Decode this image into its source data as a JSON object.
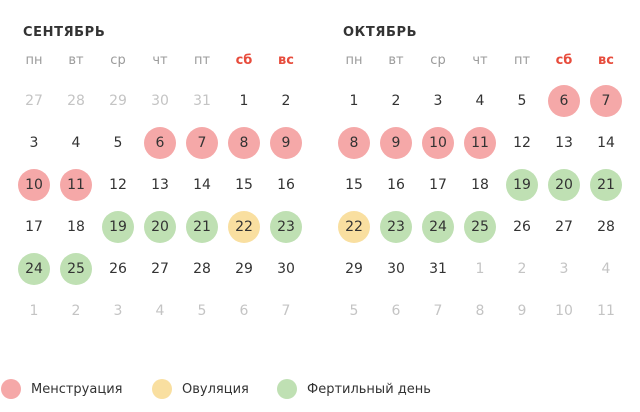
{
  "colors": {
    "menstruation": "#f5a8a8",
    "ovulation": "#f9dfa0",
    "fertile": "#bfe0b3",
    "weekend_header": "#e74c3c",
    "other_month_day": "#c4c4c4"
  },
  "weekdays": [
    "пн",
    "вт",
    "ср",
    "чт",
    "пт",
    "сб",
    "вс"
  ],
  "months": [
    {
      "title": "СЕНТЯБРЬ",
      "weeks": [
        [
          {
            "n": "27",
            "other": true
          },
          {
            "n": "28",
            "other": true
          },
          {
            "n": "29",
            "other": true
          },
          {
            "n": "30",
            "other": true
          },
          {
            "n": "31",
            "other": true
          },
          {
            "n": "1"
          },
          {
            "n": "2"
          }
        ],
        [
          {
            "n": "3"
          },
          {
            "n": "4"
          },
          {
            "n": "5"
          },
          {
            "n": "6",
            "mark": "mens"
          },
          {
            "n": "7",
            "mark": "mens"
          },
          {
            "n": "8",
            "mark": "mens"
          },
          {
            "n": "9",
            "mark": "mens"
          }
        ],
        [
          {
            "n": "10",
            "mark": "mens"
          },
          {
            "n": "11",
            "mark": "mens"
          },
          {
            "n": "12"
          },
          {
            "n": "13"
          },
          {
            "n": "14"
          },
          {
            "n": "15"
          },
          {
            "n": "16"
          }
        ],
        [
          {
            "n": "17"
          },
          {
            "n": "18"
          },
          {
            "n": "19",
            "mark": "fert"
          },
          {
            "n": "20",
            "mark": "fert"
          },
          {
            "n": "21",
            "mark": "fert"
          },
          {
            "n": "22",
            "mark": "ovul"
          },
          {
            "n": "23",
            "mark": "fert"
          }
        ],
        [
          {
            "n": "24",
            "mark": "fert"
          },
          {
            "n": "25",
            "mark": "fert"
          },
          {
            "n": "26"
          },
          {
            "n": "27"
          },
          {
            "n": "28"
          },
          {
            "n": "29"
          },
          {
            "n": "30"
          }
        ],
        [
          {
            "n": "1",
            "other": true
          },
          {
            "n": "2",
            "other": true
          },
          {
            "n": "3",
            "other": true
          },
          {
            "n": "4",
            "other": true
          },
          {
            "n": "5",
            "other": true
          },
          {
            "n": "6",
            "other": true
          },
          {
            "n": "7",
            "other": true
          }
        ]
      ]
    },
    {
      "title": "ОКТЯБРЬ",
      "weeks": [
        [
          {
            "n": "1"
          },
          {
            "n": "2"
          },
          {
            "n": "3"
          },
          {
            "n": "4"
          },
          {
            "n": "5"
          },
          {
            "n": "6",
            "mark": "mens"
          },
          {
            "n": "7",
            "mark": "mens"
          }
        ],
        [
          {
            "n": "8",
            "mark": "mens"
          },
          {
            "n": "9",
            "mark": "mens"
          },
          {
            "n": "10",
            "mark": "mens"
          },
          {
            "n": "11",
            "mark": "mens"
          },
          {
            "n": "12"
          },
          {
            "n": "13"
          },
          {
            "n": "14"
          }
        ],
        [
          {
            "n": "15"
          },
          {
            "n": "16"
          },
          {
            "n": "17"
          },
          {
            "n": "18"
          },
          {
            "n": "19",
            "mark": "fert"
          },
          {
            "n": "20",
            "mark": "fert"
          },
          {
            "n": "21",
            "mark": "fert"
          }
        ],
        [
          {
            "n": "22",
            "mark": "ovul"
          },
          {
            "n": "23",
            "mark": "fert"
          },
          {
            "n": "24",
            "mark": "fert"
          },
          {
            "n": "25",
            "mark": "fert"
          },
          {
            "n": "26"
          },
          {
            "n": "27"
          },
          {
            "n": "28"
          }
        ],
        [
          {
            "n": "29"
          },
          {
            "n": "30"
          },
          {
            "n": "31"
          },
          {
            "n": "1",
            "other": true
          },
          {
            "n": "2",
            "other": true
          },
          {
            "n": "3",
            "other": true
          },
          {
            "n": "4",
            "other": true
          }
        ],
        [
          {
            "n": "5",
            "other": true
          },
          {
            "n": "6",
            "other": true
          },
          {
            "n": "7",
            "other": true
          },
          {
            "n": "8",
            "other": true
          },
          {
            "n": "9",
            "other": true
          },
          {
            "n": "10",
            "other": true
          },
          {
            "n": "11",
            "other": true
          }
        ]
      ]
    }
  ],
  "legend": {
    "menstruation": "Менструация",
    "ovulation": "Овуляция",
    "fertile": "Фертильный день"
  }
}
